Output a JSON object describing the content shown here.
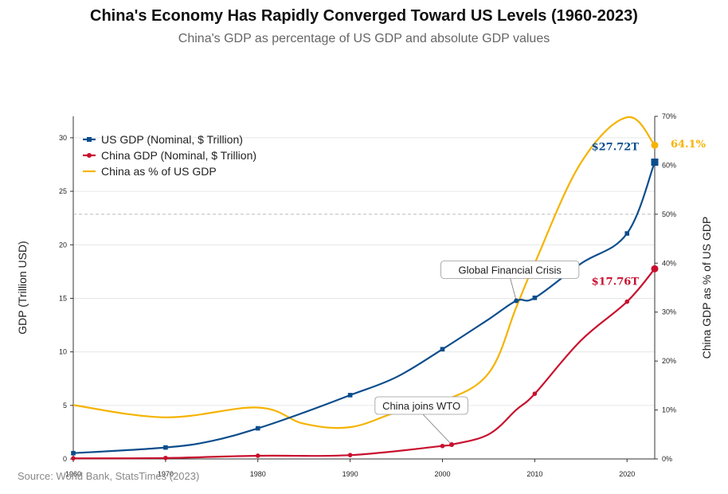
{
  "title": "China's Economy Has Rapidly Converged Toward US Levels (1960-2023)",
  "subtitle": "China's GDP as percentage of US GDP and absolute GDP values",
  "source": "Source: World Bank, StatsTimes (2023)",
  "colors": {
    "us": "#0b4d8c",
    "china": "#c8102e",
    "pct": "#f5b300",
    "grid": "#e6e6e6",
    "ref": "#bbbbbb"
  },
  "chart_data": {
    "type": "line",
    "ylabel": "GDP (Trillion USD)",
    "y2label": "China GDP as % of US GDP",
    "xlim": [
      1960,
      2023
    ],
    "ylim": [
      0,
      32
    ],
    "y2lim": [
      0,
      70
    ],
    "x_ticks": [
      1960,
      1970,
      1980,
      1990,
      2000,
      2010,
      2020
    ],
    "x_tick_labels": [
      "1960",
      "1970",
      "1980",
      "1990",
      "2000",
      "2010",
      "2020"
    ],
    "y_ticks": [
      0,
      5,
      10,
      15,
      20,
      25,
      30
    ],
    "y_tick_labels": [
      "0",
      "5",
      "10",
      "15",
      "20",
      "25",
      "30"
    ],
    "y2_ticks": [
      0,
      10,
      20,
      30,
      40,
      50,
      60,
      70
    ],
    "y2_tick_labels": [
      "0%",
      "10%",
      "20%",
      "30%",
      "40%",
      "50%",
      "60%",
      "70%"
    ],
    "reference_line_y2": 50,
    "legend_position": "top-left",
    "series": [
      {
        "key": "us",
        "name": "US GDP (Nominal, $ Trillion)",
        "axis": "left",
        "marker": "square",
        "x": [
          1960,
          1970,
          1975,
          1980,
          1985,
          1990,
          1995,
          2000,
          2005,
          2008,
          2010,
          2015,
          2020,
          2023
        ],
        "y": [
          0.54,
          1.07,
          1.68,
          2.86,
          4.34,
          5.96,
          7.64,
          10.25,
          13.04,
          14.77,
          15.05,
          18.24,
          21.06,
          27.72
        ],
        "marker_x": [
          1960,
          1970,
          1980,
          1990,
          2000,
          2010,
          2020,
          2023
        ]
      },
      {
        "key": "china",
        "name": "China GDP (Nominal, $ Trillion)",
        "axis": "left",
        "marker": "circle",
        "x": [
          1960,
          1970,
          1980,
          1990,
          2000,
          2001,
          2005,
          2008,
          2010,
          2015,
          2020,
          2023
        ],
        "y": [
          0.06,
          0.09,
          0.3,
          0.36,
          1.21,
          1.34,
          2.29,
          4.59,
          6.09,
          11.06,
          14.69,
          17.76
        ],
        "marker_x": [
          1960,
          1970,
          1980,
          1990,
          2000,
          2001,
          2010,
          2020,
          2023
        ]
      },
      {
        "key": "pct",
        "name": "China as % of US GDP",
        "axis": "right",
        "marker": "none",
        "x": [
          1960,
          1970,
          1980,
          1985,
          1990,
          1995,
          2000,
          2005,
          2008,
          2010,
          2015,
          2020,
          2023
        ],
        "y": [
          11,
          8.5,
          10.5,
          7.2,
          6.5,
          9.5,
          11.8,
          17.5,
          31,
          40,
          60.5,
          69.8,
          64.1
        ]
      }
    ],
    "annotations": [
      {
        "text": "China joins WTO",
        "series": "china",
        "x": 2001,
        "y": 1.34
      },
      {
        "text": "Global Financial Crisis",
        "series": "us",
        "x": 2008,
        "y": 14.77
      }
    ],
    "end_labels": [
      {
        "series": "us",
        "text": "$27.72T",
        "x": 2023,
        "y": 27.72
      },
      {
        "series": "china",
        "text": "$17.76T",
        "x": 2023,
        "y": 17.76
      },
      {
        "series": "pct",
        "text": "64.1%",
        "x": 2023,
        "y": 64.1
      }
    ]
  }
}
